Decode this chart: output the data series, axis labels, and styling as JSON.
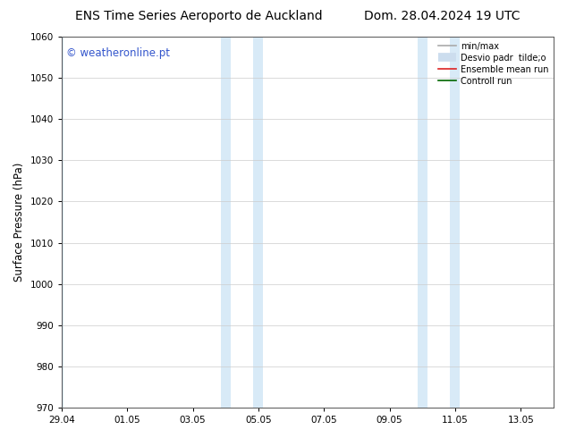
{
  "title_left": "ENS Time Series Aeroporto de Auckland",
  "title_right": "Dom. 28.04.2024 19 UTC",
  "ylabel": "Surface Pressure (hPa)",
  "ylim": [
    970,
    1060
  ],
  "yticks": [
    970,
    980,
    990,
    1000,
    1010,
    1020,
    1030,
    1040,
    1050,
    1060
  ],
  "xtick_labels": [
    "29.04",
    "01.05",
    "03.05",
    "05.05",
    "07.05",
    "09.05",
    "11.05",
    "13.05"
  ],
  "xtick_positions": [
    0,
    2,
    4,
    6,
    8,
    10,
    12,
    14
  ],
  "shaded_regions": [
    {
      "start": -0.15,
      "end": 0.05,
      "color": "#d8eaf7"
    },
    {
      "start": 4.85,
      "end": 5.15,
      "color": "#d8eaf7"
    },
    {
      "start": 5.85,
      "end": 6.15,
      "color": "#d8eaf7"
    },
    {
      "start": 10.85,
      "end": 11.15,
      "color": "#d8eaf7"
    },
    {
      "start": 11.85,
      "end": 12.15,
      "color": "#d8eaf7"
    }
  ],
  "watermark_text": "© weatheronline.pt",
  "watermark_color": "#3355cc",
  "legend_items": [
    {
      "label": "min/max",
      "color": "#aaaaaa",
      "lw": 1.2,
      "style": "line"
    },
    {
      "label": "Desvio padr  tilde;o",
      "color": "#ccddee",
      "lw": 7,
      "style": "band"
    },
    {
      "label": "Ensemble mean run",
      "color": "#dd2222",
      "lw": 1.2,
      "style": "line"
    },
    {
      "label": "Controll run",
      "color": "#006600",
      "lw": 1.2,
      "style": "line"
    }
  ],
  "bg_color": "#ffffff",
  "title_fontsize": 10,
  "tick_fontsize": 7.5,
  "ylabel_fontsize": 8.5,
  "watermark_fontsize": 8.5,
  "grid_color": "#cccccc",
  "spine_color": "#555555"
}
